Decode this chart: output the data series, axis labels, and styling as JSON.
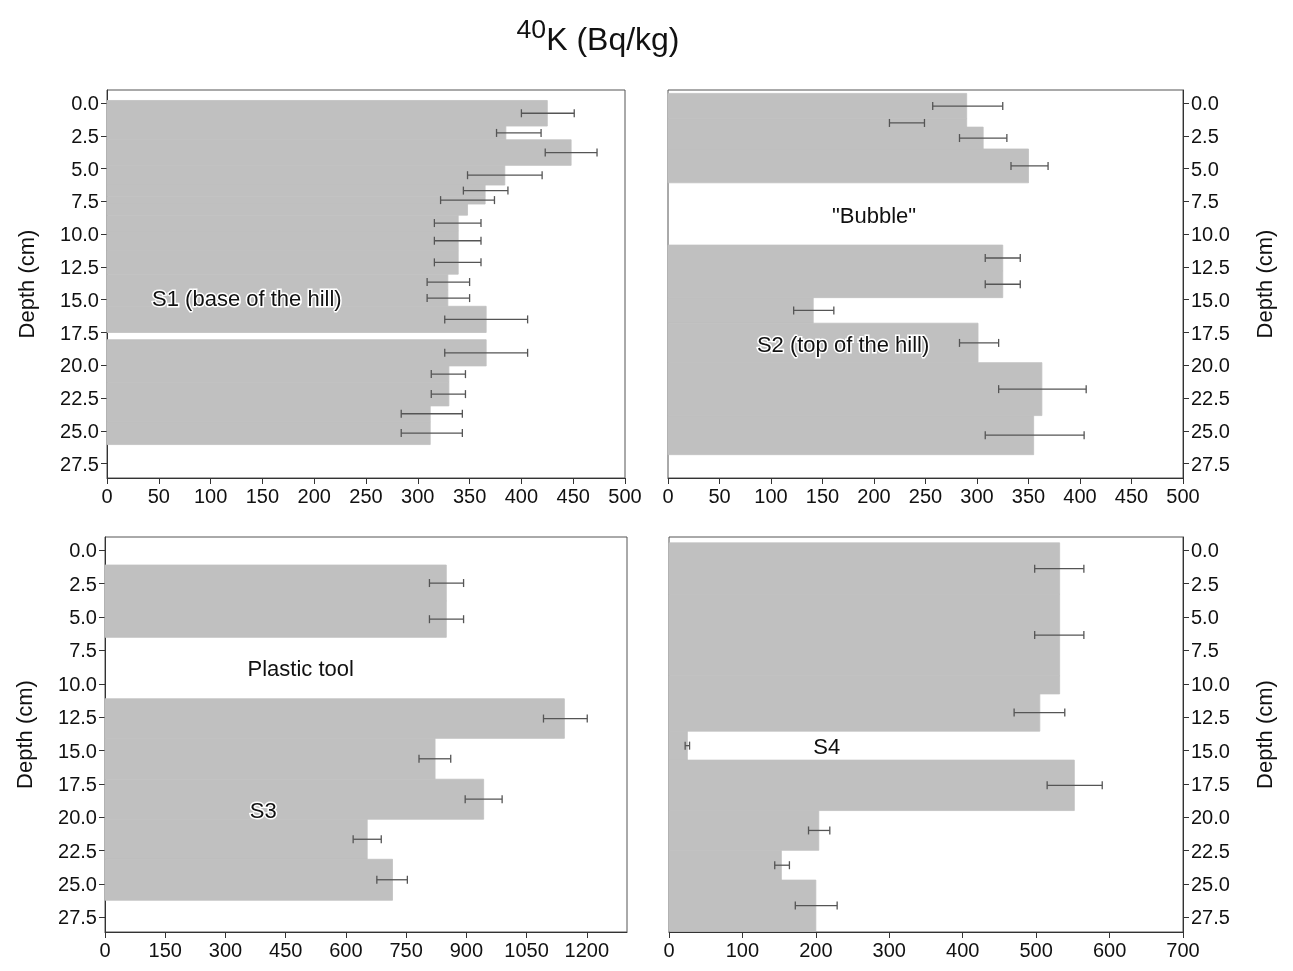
{
  "chart_data": [
    {
      "type": "histogram",
      "orientation": "horizontal",
      "title": "$^{40}$K (Bq/kg)",
      "ylabel": "Depth (cm)",
      "color": "#c0c0c0",
      "bins": [
        -0.2,
        1.75,
        2.8,
        4.75,
        6.25,
        7.1,
        7.7,
        8.55,
        9.75,
        11.25,
        13.05,
        14.25,
        15.5,
        17.5,
        18.05,
        20.05,
        21.3,
        23.1,
        24.3,
        26.05
      ],
      "values": [
        425,
        385,
        448,
        384,
        365,
        365,
        348,
        339,
        339,
        339,
        329,
        329,
        366,
        null,
        366,
        330,
        330,
        312,
        312
      ],
      "errors": [
        [
          400,
          451
        ],
        [
          376,
          419
        ],
        [
          423,
          473
        ],
        [
          348,
          420
        ],
        [
          344,
          387
        ],
        [
          322,
          374
        ],
        null,
        [
          316,
          361
        ],
        [
          316,
          361
        ],
        [
          316,
          361
        ],
        [
          309,
          350
        ],
        [
          309,
          350
        ],
        [
          326,
          406
        ],
        null,
        [
          326,
          406
        ],
        [
          313,
          346
        ],
        [
          313,
          346
        ],
        [
          284,
          343
        ],
        [
          284,
          343
        ]
      ],
      "xlim": [
        0,
        500
      ],
      "xticks": [
        0,
        50,
        100,
        150,
        200,
        250,
        300,
        350,
        400,
        450,
        500
      ],
      "ylim": [
        28.6,
        -1
      ],
      "yticks": [
        {
          "value": 0,
          "label": "0.0"
        },
        2.5,
        {
          "value": 5,
          "label": "5.0"
        },
        7.5,
        {
          "value": 10,
          "label": "10.0"
        },
        12.5,
        {
          "value": 15,
          "label": "15.0"
        },
        17.5,
        {
          "value": 20,
          "label": "20.0"
        },
        22.5,
        {
          "value": 25,
          "label": "25.0"
        },
        27.5
      ],
      "annotations": [
        "S1 (base of the hill)"
      ]
    },
    {
      "type": "histogram",
      "orientation": "horizontal",
      "ylabel": "Depth (cm)",
      "color": "#c0c0c0",
      "bins": [
        -0.74,
        1.2,
        1.83,
        3.5,
        6.08,
        10.83,
        12.8,
        14.84,
        16.79,
        19.8,
        23.84,
        26.82
      ],
      "values": [
        290,
        290,
        306,
        350,
        null,
        325,
        325,
        141,
        301,
        363,
        355
      ],
      "errors": [
        [
          257,
          325
        ],
        [
          215,
          249
        ],
        [
          283,
          329
        ],
        [
          333,
          369
        ],
        null,
        [
          308,
          342
        ],
        [
          308,
          342
        ],
        [
          122,
          161
        ],
        [
          283,
          321
        ],
        [
          321,
          406
        ],
        [
          308,
          404
        ]
      ],
      "xlim": [
        0,
        500
      ],
      "xticks": [
        0,
        50,
        100,
        150,
        200,
        250,
        300,
        350,
        400,
        450,
        500
      ],
      "ylim": [
        28.6,
        -1
      ],
      "yticks": [
        {
          "value": 0,
          "label": "0.0"
        },
        2.5,
        {
          "value": 5,
          "label": "5.0"
        },
        7.5,
        {
          "value": 10,
          "label": "10.0"
        },
        12.5,
        {
          "value": 15,
          "label": "15.0"
        },
        17.5,
        {
          "value": 20,
          "label": "20.0"
        },
        22.5,
        {
          "value": 25,
          "label": "25.0"
        },
        27.5
      ],
      "annotations": [
        "\"Bubble\"",
        "S2 (top of the hill)"
      ]
    },
    {
      "type": "histogram",
      "orientation": "horizontal",
      "ylabel": "Depth (cm)",
      "color": "#c0c0c0",
      "bins": [
        1.1,
        3.8,
        6.52,
        11.12,
        14.09,
        17.15,
        20.15,
        23.15,
        26.22
      ],
      "values": [
        850,
        850,
        null,
        1144,
        822,
        943,
        653,
        716
      ],
      "errors": [
        [
          808,
          893
        ],
        [
          808,
          893
        ],
        null,
        [
          1092,
          1201
        ],
        [
          782,
          861
        ],
        [
          897,
          989
        ],
        [
          618,
          688
        ],
        [
          677,
          753
        ]
      ],
      "xlim": [
        0,
        1300
      ],
      "xticks": [
        0,
        150,
        300,
        450,
        600,
        750,
        900,
        1050,
        1200
      ],
      "ylim": [
        28.6,
        -1
      ],
      "yticks": [
        {
          "value": 0,
          "label": "0.0"
        },
        2.5,
        {
          "value": 5,
          "label": "5.0"
        },
        7.5,
        {
          "value": 10,
          "label": "10.0"
        },
        12.5,
        {
          "value": 15,
          "label": "15.0"
        },
        17.5,
        {
          "value": 20,
          "label": "20.0"
        },
        22.5,
        {
          "value": 25,
          "label": "25.0"
        },
        27.5
      ],
      "annotations": [
        "Plastic tool",
        "S3"
      ]
    },
    {
      "type": "histogram",
      "orientation": "horizontal",
      "ylabel": "Depth (cm)",
      "color": "#c0c0c0",
      "bins": [
        -0.56,
        3.3,
        9.4,
        10.76,
        13.55,
        15.72,
        19.5,
        22.48,
        24.71,
        28.53
      ],
      "values": [
        532,
        532,
        532,
        505,
        25,
        552,
        204,
        153,
        200
      ],
      "errors": [
        [
          498,
          565
        ],
        [
          498,
          565
        ],
        null,
        [
          470,
          539
        ],
        [
          22,
          28
        ],
        [
          515,
          590
        ],
        [
          190,
          219
        ],
        [
          144,
          164
        ],
        [
          172,
          229
        ]
      ],
      "xlim": [
        0,
        700
      ],
      "xticks": [
        0,
        100,
        200,
        300,
        400,
        500,
        600,
        700
      ],
      "ylim": [
        28.6,
        -1
      ],
      "yticks": [
        {
          "value": 0,
          "label": "0.0"
        },
        2.5,
        {
          "value": 5,
          "label": "5.0"
        },
        7.5,
        {
          "value": 10,
          "label": "10.0"
        },
        12.5,
        {
          "value": 15,
          "label": "15.0"
        },
        17.5,
        {
          "value": 20,
          "label": "20.0"
        },
        22.5,
        {
          "value": 25,
          "label": "25.0"
        },
        27.5
      ],
      "annotations": [
        "S4"
      ]
    }
  ]
}
